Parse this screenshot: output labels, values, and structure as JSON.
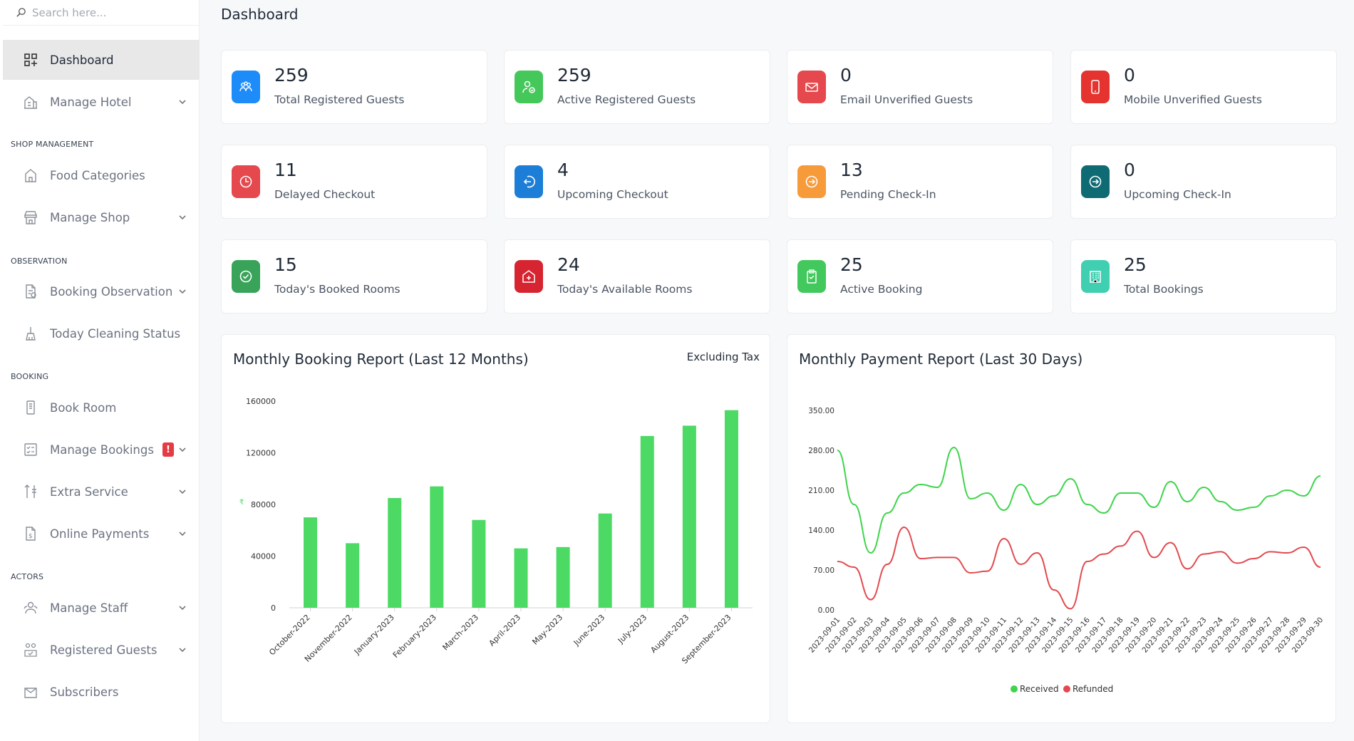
{
  "search": {
    "placeholder": "Search here..."
  },
  "page_title": "Dashboard",
  "sidebar": {
    "items": [
      {
        "label": "Dashboard",
        "icon": "dashboard-icon",
        "active": true
      },
      {
        "label": "Manage Hotel",
        "icon": "hotel-icon",
        "dropdown": true
      },
      {
        "label": "Food Categories",
        "icon": "home-icon"
      },
      {
        "label": "Manage Shop",
        "icon": "shop-icon",
        "dropdown": true
      },
      {
        "label": "Booking Observation",
        "icon": "file-observation-icon",
        "dropdown": true
      },
      {
        "label": "Today Cleaning Status",
        "icon": "cleaning-icon"
      },
      {
        "label": "Book Room",
        "icon": "door-icon"
      },
      {
        "label": "Manage Bookings",
        "icon": "checklist-icon",
        "dropdown": true,
        "badge": "!"
      },
      {
        "label": "Extra Service",
        "icon": "service-icon",
        "dropdown": true
      },
      {
        "label": "Online Payments",
        "icon": "payment-icon",
        "dropdown": true
      },
      {
        "label": "Manage Staff",
        "icon": "staff-icon",
        "dropdown": true
      },
      {
        "label": "Registered Guests",
        "icon": "guests-icon",
        "dropdown": true
      },
      {
        "label": "Subscribers",
        "icon": "subscribers-icon"
      }
    ],
    "sections": [
      "SHOP MANAGEMENT",
      "OBSERVATION",
      "BOOKING",
      "ACTORS"
    ]
  },
  "cards": [
    {
      "value": "259",
      "label": "Total Registered Guests",
      "color": "#1d8cf8",
      "icon": "guests-icon"
    },
    {
      "value": "259",
      "label": "Active Registered Guests",
      "color": "#45c85a",
      "icon": "user-check-icon"
    },
    {
      "value": "0",
      "label": "Email Unverified Guests",
      "color": "#e5484d",
      "icon": "mail-icon"
    },
    {
      "value": "0",
      "label": "Mobile Unverified Guests",
      "color": "#e5342f",
      "icon": "mobile-icon"
    },
    {
      "value": "11",
      "label": "Delayed Checkout",
      "color": "#e5484d",
      "icon": "clock-icon"
    },
    {
      "value": "4",
      "label": "Upcoming Checkout",
      "color": "#1c7ed6",
      "icon": "logout-icon"
    },
    {
      "value": "13",
      "label": "Pending Check-In",
      "color": "#f79a3a",
      "icon": "login-icon"
    },
    {
      "value": "0",
      "label": "Upcoming Check-In",
      "color": "#0e6b73",
      "icon": "login-icon"
    },
    {
      "value": "15",
      "label": "Today's Booked Rooms",
      "color": "#3aa35a",
      "icon": "check-icon"
    },
    {
      "value": "24",
      "label": "Today's Available Rooms",
      "color": "#d62430",
      "icon": "hotel-plus-icon"
    },
    {
      "value": "25",
      "label": "Active Booking",
      "color": "#42c85c",
      "icon": "clipboard-icon"
    },
    {
      "value": "25",
      "label": "Total Bookings",
      "color": "#40cfb1",
      "icon": "building-icon"
    }
  ],
  "booking_panel": {
    "title": "Monthly Booking Report (Last 12 Months)",
    "note": "Excluding Tax"
  },
  "payment_panel": {
    "title": "Monthly Payment Report (Last 30 Days)"
  },
  "chart_data": [
    {
      "type": "bar",
      "title": "Monthly Booking Report (Last 12 Months)",
      "categories": [
        "October-2022",
        "November-2022",
        "January-2023",
        "February-2023",
        "March-2023",
        "April-2023",
        "May-2023",
        "June-2023",
        "July-2023",
        "August-2023",
        "September-2023"
      ],
      "values": [
        70000,
        50000,
        85000,
        94000,
        68000,
        46000,
        47000,
        73000,
        133000,
        141000,
        153000
      ],
      "ylim": [
        0,
        160000
      ],
      "yticks": [
        "160000",
        "120000",
        "80000",
        "40000",
        "0"
      ],
      "ylabel": "₹",
      "color": "#4cd964"
    },
    {
      "type": "line",
      "title": "Monthly Payment Report (Last 30 Days)",
      "x": [
        "2023-09-01",
        "2023-09-02",
        "2023-09-03",
        "2023-09-04",
        "2023-09-05",
        "2023-09-06",
        "2023-09-07",
        "2023-09-08",
        "2023-09-09",
        "2023-09-10",
        "2023-09-11",
        "2023-09-12",
        "2023-09-13",
        "2023-09-14",
        "2023-09-15",
        "2023-09-16",
        "2023-09-17",
        "2023-09-18",
        "2023-09-19",
        "2023-09-20",
        "2023-09-21",
        "2023-09-22",
        "2023-09-23",
        "2023-09-24",
        "2023-09-25",
        "2023-09-26",
        "2023-09-27",
        "2023-09-28",
        "2023-09-29",
        "2023-09-30"
      ],
      "ylim": [
        0,
        350
      ],
      "yticks": [
        "350.00",
        "280.00",
        "210.00",
        "140.00",
        "70.00",
        "0.00"
      ],
      "series": [
        {
          "name": "Received",
          "color": "#3ed44c",
          "values": [
            280,
            185,
            100,
            170,
            205,
            220,
            215,
            285,
            195,
            205,
            175,
            220,
            185,
            200,
            230,
            185,
            170,
            205,
            205,
            180,
            225,
            190,
            215,
            190,
            175,
            180,
            200,
            210,
            200,
            235
          ]
        },
        {
          "name": "Refunded",
          "color": "#e24a4f",
          "values": [
            85,
            75,
            18,
            80,
            145,
            90,
            92,
            92,
            65,
            68,
            125,
            80,
            100,
            35,
            2,
            85,
            98,
            112,
            138,
            92,
            118,
            72,
            98,
            102,
            82,
            90,
            102,
            100,
            110,
            75
          ]
        }
      ],
      "legend": "bottom"
    }
  ]
}
